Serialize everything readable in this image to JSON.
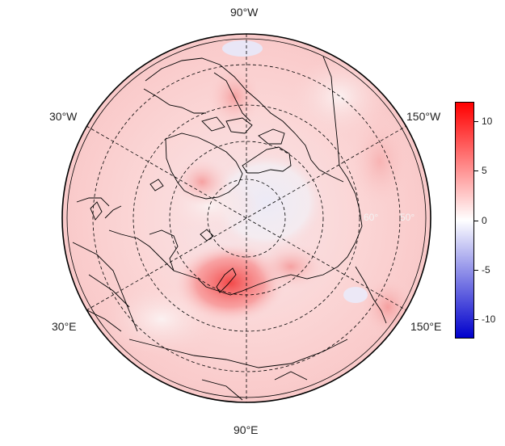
{
  "map": {
    "projection": "north polar stereographic",
    "lon_labels": {
      "top": "90°W",
      "upper_left": "30°W",
      "upper_right": "150°W",
      "lower_left": "30°E",
      "lower_right": "150°E",
      "bottom": "90°E"
    },
    "lat_circle_labels": [
      "60°",
      "50°"
    ]
  },
  "colorbar": {
    "colors": {
      "max": "#ff0000",
      "zero": "#ffffff",
      "min": "#0000cc"
    },
    "range": [
      -12,
      12
    ],
    "ticks": [
      {
        "value": 10,
        "label": "10"
      },
      {
        "value": 5,
        "label": "5"
      },
      {
        "value": 0,
        "label": "0"
      },
      {
        "value": -5,
        "label": "-5"
      },
      {
        "value": -10,
        "label": "-10"
      }
    ]
  }
}
